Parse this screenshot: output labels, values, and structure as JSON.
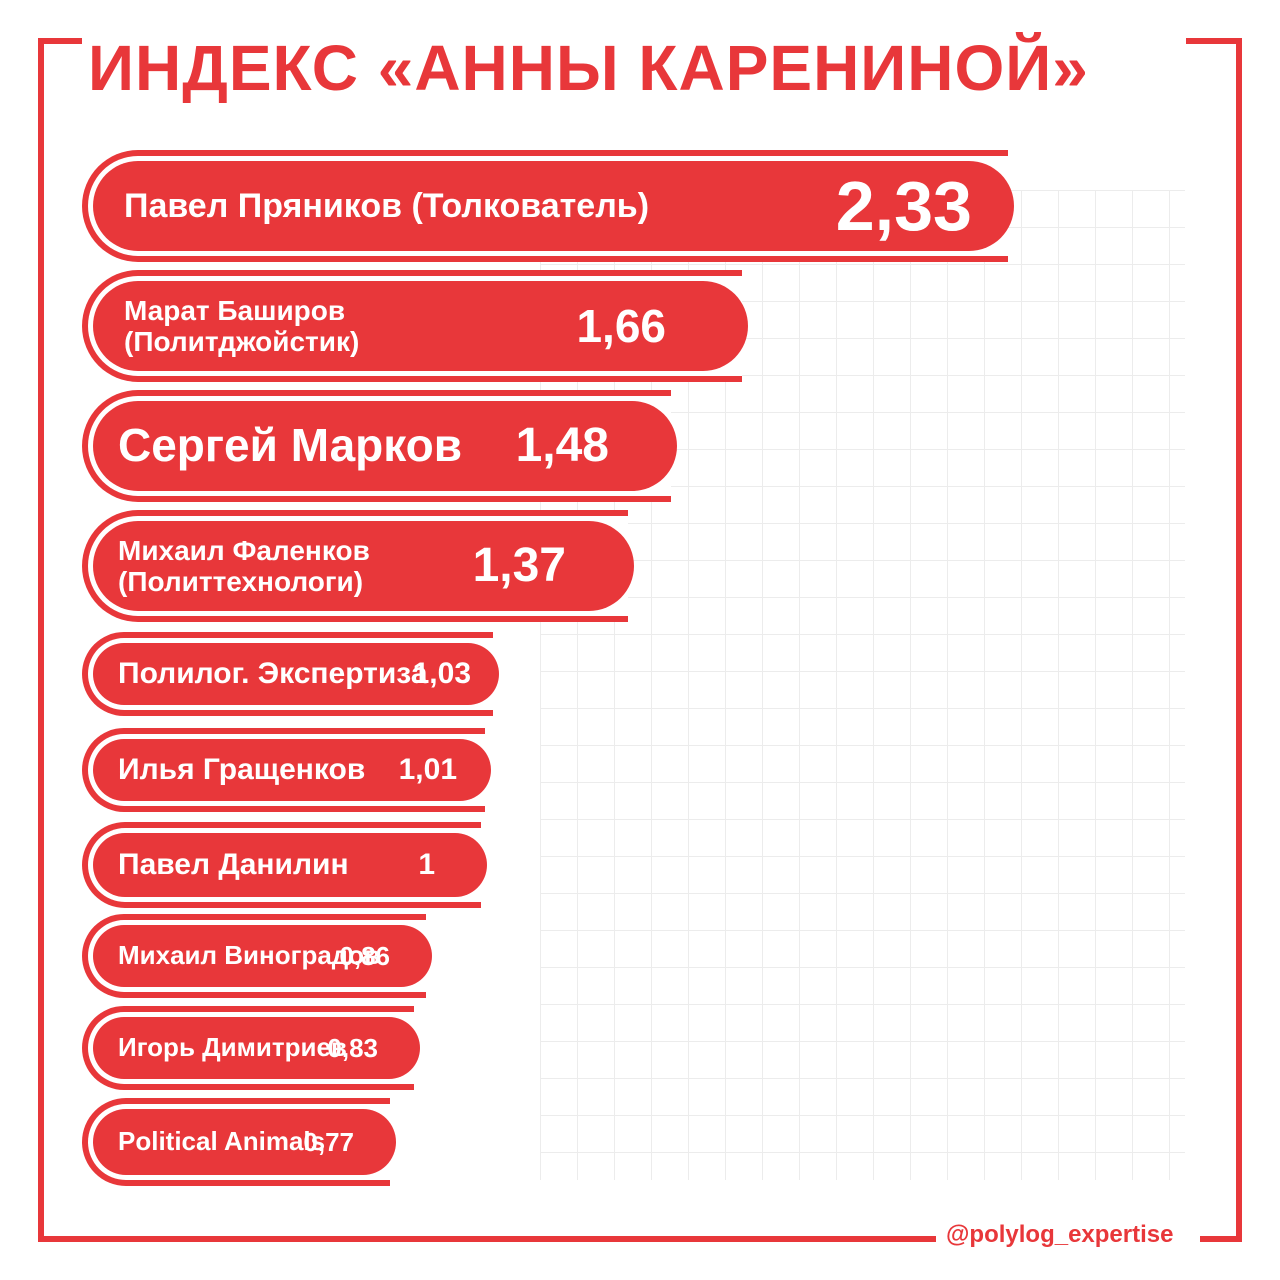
{
  "title": "ИНДЕКС «АННЫ КАРЕНИНОЙ»",
  "handle": "@polylog_expertise",
  "colors": {
    "accent": "#e8373a",
    "background": "#ffffff",
    "grid": "#ececec"
  },
  "chart_data": {
    "type": "bar",
    "orientation": "horizontal",
    "title": "ИНДЕКС «АННЫ КАРЕНИНОЙ»",
    "grid": true,
    "categories": [
      "Павел Пряников (Толкователь)",
      "Марат Баширов\n(Политджойстик)",
      "Сергей Марков",
      "Михаил Фаленков\n(Политтехнологи)",
      "Полилог. Экспертиза",
      "Илья Гращенков",
      "Павел Данилин",
      "Михаил Виноградов",
      "Игорь Димитриев",
      "Political Animals"
    ],
    "value_labels": [
      "2,33",
      "1,66",
      "1,48",
      "1,37",
      "1,03",
      "1,01",
      "1",
      "0,86",
      "0,83",
      "0,77"
    ],
    "values": [
      2.33,
      1.66,
      1.48,
      1.37,
      1.03,
      1.01,
      1.0,
      0.86,
      0.83,
      0.77
    ]
  }
}
